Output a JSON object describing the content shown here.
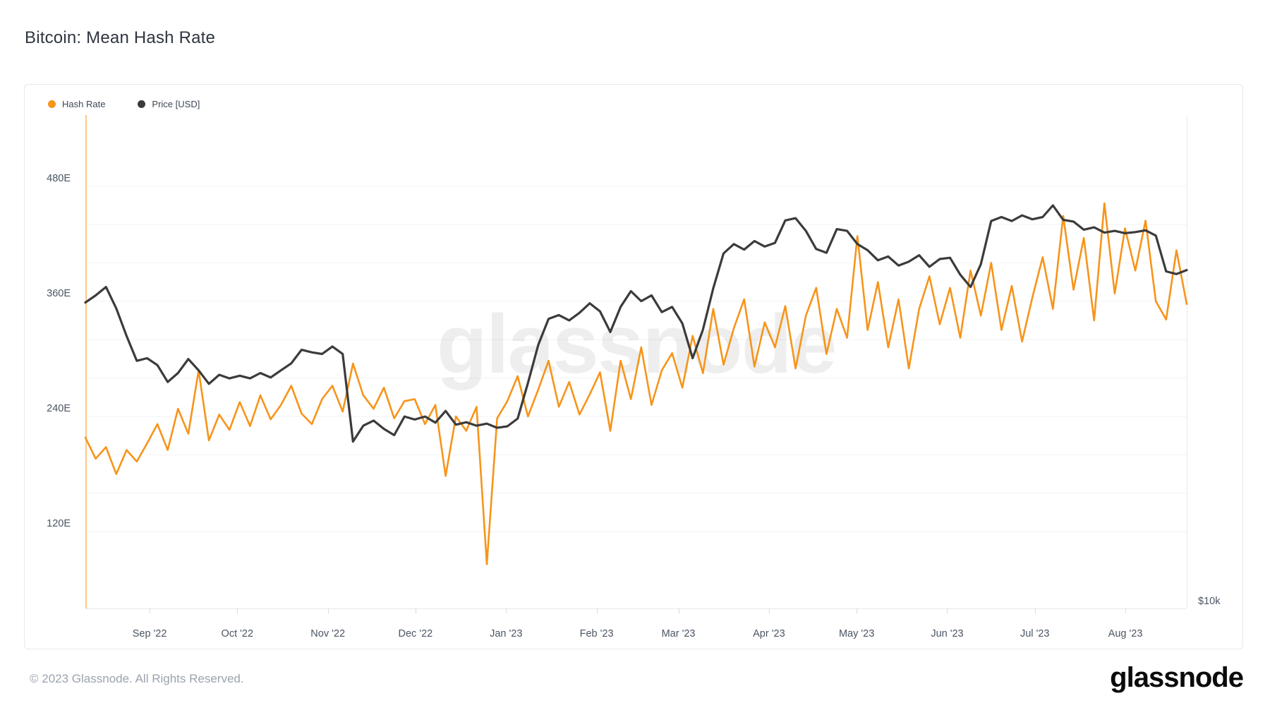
{
  "page": {
    "title": "Bitcoin: Mean Hash Rate",
    "footer_copyright": "© 2023 Glassnode. All Rights Reserved.",
    "brand_logo": "glassnode",
    "watermark": "glassnode"
  },
  "legend": [
    {
      "label": "Hash Rate",
      "color": "#f7941a"
    },
    {
      "label": "Price [USD]",
      "color": "#3b3b3b"
    }
  ],
  "chart_data": {
    "type": "line",
    "title": "Bitcoin: Mean Hash Rate",
    "x_start": "2022-08-10",
    "x_end": "2023-08-22",
    "total_days": 377,
    "x_tick_labels": [
      "Sep '22",
      "Oct '22",
      "Nov '22",
      "Dec '22",
      "Jan '23",
      "Feb '23",
      "Mar '23",
      "Apr '23",
      "May '23",
      "Jun '23",
      "Jul '23",
      "Aug '23"
    ],
    "x_tick_day_offsets": [
      22,
      52,
      83,
      113,
      144,
      175,
      203,
      234,
      264,
      295,
      325,
      356
    ],
    "left_axis": {
      "title": "Hash Rate (EH/s)",
      "scale": "linear",
      "ylim": [
        40,
        554
      ],
      "tick_values": [
        480,
        360,
        240,
        120
      ],
      "tick_labels": [
        "480E",
        "360E",
        "240E",
        "120E"
      ],
      "minor_grid_step": 40,
      "axis_line_color": "#f7941a"
    },
    "right_axis": {
      "title": "Price [USD]",
      "scale": "log",
      "ylim": [
        9800,
        41000
      ],
      "tick_values": [
        10000
      ],
      "tick_labels": [
        "$10k"
      ]
    },
    "grid": "horizontal-only",
    "legend_position": "top-left",
    "series": [
      {
        "name": "Hash Rate",
        "axis": "left",
        "unit": "EH/s",
        "color": "#f7941a",
        "stroke_width": 2.6,
        "values": [
          218,
          196,
          208,
          180,
          205,
          193,
          212,
          232,
          205,
          248,
          222,
          288,
          215,
          242,
          226,
          255,
          230,
          262,
          237,
          252,
          272,
          243,
          232,
          258,
          272,
          245,
          295,
          262,
          248,
          270,
          238,
          256,
          258,
          232,
          252,
          178,
          240,
          225,
          250,
          86,
          238,
          256,
          282,
          240,
          268,
          298,
          250,
          276,
          242,
          263,
          286,
          225,
          298,
          258,
          312,
          252,
          288,
          306,
          270,
          324,
          285,
          352,
          294,
          332,
          362,
          292,
          338,
          312,
          355,
          290,
          345,
          374,
          305,
          352,
          322,
          428,
          330,
          380,
          312,
          362,
          290,
          352,
          386,
          336,
          374,
          322,
          392,
          345,
          400,
          330,
          376,
          318,
          364,
          406,
          352,
          449,
          372,
          426,
          340,
          462,
          368,
          436,
          392,
          444,
          360,
          341,
          413,
          357
        ]
      },
      {
        "name": "Price [USD]",
        "axis": "right",
        "unit": "USD",
        "color": "#3b3b3b",
        "stroke_width": 3.2,
        "values": [
          23800,
          24300,
          24900,
          23400,
          21600,
          20100,
          20250,
          19850,
          18900,
          19400,
          20200,
          19550,
          18800,
          19300,
          19100,
          19250,
          19100,
          19400,
          19150,
          19550,
          19950,
          20750,
          20600,
          20500,
          20950,
          20500,
          15900,
          16650,
          16900,
          16500,
          16200,
          17100,
          16950,
          17100,
          16800,
          17380,
          16700,
          16820,
          16650,
          16750,
          16550,
          16620,
          17000,
          18850,
          21050,
          22700,
          22950,
          22600,
          23100,
          23750,
          23200,
          21850,
          23500,
          24600,
          23900,
          24300,
          23150,
          23500,
          22400,
          20250,
          22000,
          24800,
          27450,
          28200,
          27750,
          28450,
          28000,
          28300,
          30200,
          30400,
          29300,
          27800,
          27500,
          29450,
          29300,
          28200,
          27700,
          26900,
          27200,
          26500,
          26800,
          27300,
          26400,
          27000,
          27100,
          25800,
          24900,
          26600,
          30150,
          30500,
          30150,
          30650,
          30300,
          30500,
          31550,
          30250,
          30100,
          29400,
          29600,
          29150,
          29300,
          29100,
          29200,
          29350,
          28900,
          26050,
          25850,
          26150
        ]
      }
    ]
  }
}
